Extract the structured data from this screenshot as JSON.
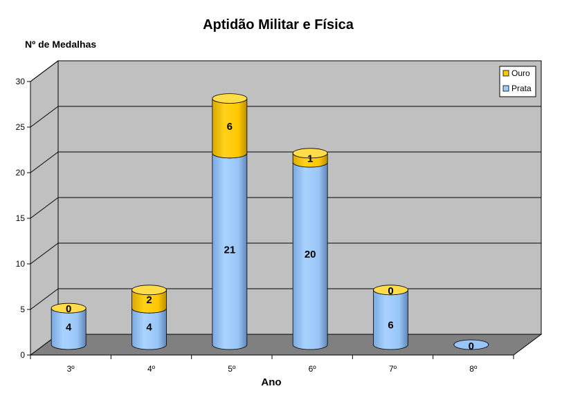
{
  "chart_data": {
    "type": "bar",
    "stacked": true,
    "three_d": true,
    "title": "Aptidão Militar e Física",
    "ylabel": "Nº de Medalhas",
    "xlabel": "Ano",
    "categories": [
      "3º",
      "4º",
      "5º",
      "6º",
      "7º",
      "8º"
    ],
    "series": [
      {
        "name": "Prata",
        "values": [
          4,
          4,
          21,
          20,
          6,
          0
        ],
        "color": "#99CCFF"
      },
      {
        "name": "Ouro",
        "values": [
          0,
          2,
          6,
          1,
          0,
          0
        ],
        "color": "#FFCC00"
      }
    ],
    "ylim": [
      0,
      30
    ],
    "yticks": [
      "0",
      "5",
      "10",
      "15",
      "20",
      "25",
      "30"
    ],
    "value_labels": {
      "Prata": [
        "4",
        "4",
        "21",
        "20",
        "6",
        "0"
      ],
      "Ouro": [
        "0",
        "2",
        "6",
        "1",
        "0",
        ""
      ]
    },
    "grid": true,
    "legend_position": "top-right",
    "wall_color": "#C0C0C0",
    "floor_color": "#808080"
  }
}
